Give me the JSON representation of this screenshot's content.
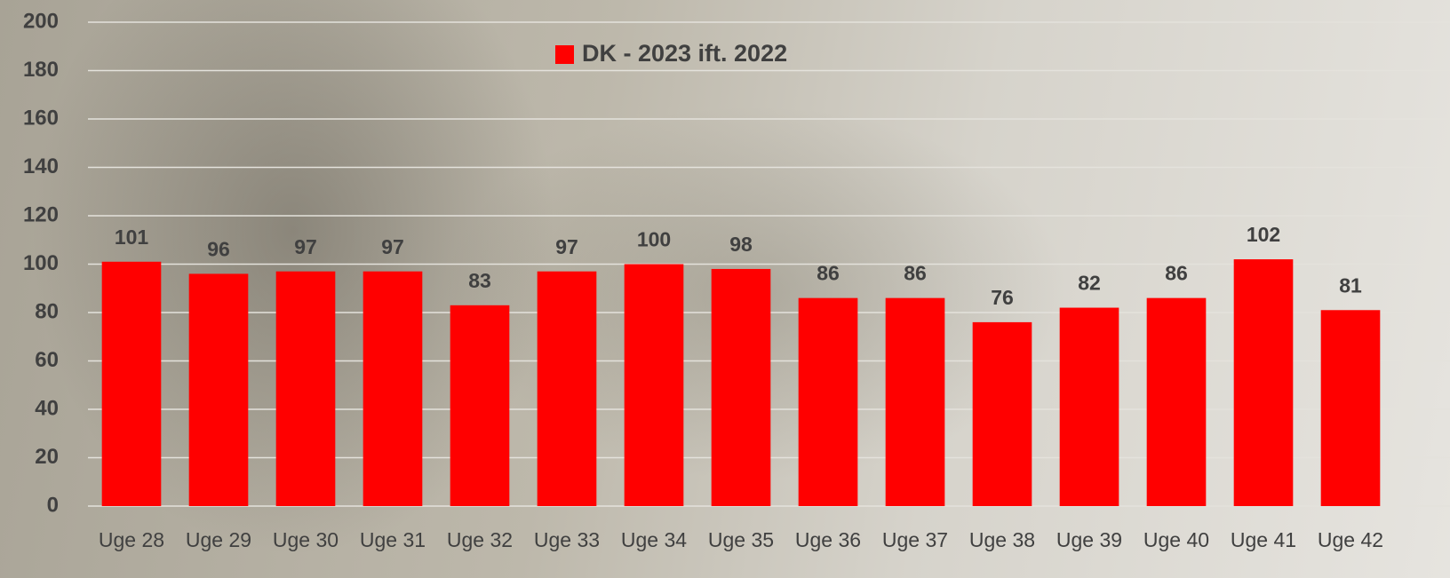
{
  "chart_data": {
    "type": "bar",
    "categories": [
      "Uge 28",
      "Uge 29",
      "Uge 30",
      "Uge 31",
      "Uge 32",
      "Uge 33",
      "Uge 34",
      "Uge 35",
      "Uge 36",
      "Uge 37",
      "Uge 38",
      "Uge 39",
      "Uge 40",
      "Uge 41",
      "Uge 42"
    ],
    "series": [
      {
        "name": "DK - 2023 ift. 2022",
        "color": "#ff0000",
        "values": [
          101,
          96,
          97,
          97,
          83,
          97,
          100,
          98,
          86,
          86,
          76,
          82,
          86,
          102,
          81
        ]
      }
    ],
    "ylim": [
      0,
      200
    ],
    "yticks": [
      0,
      20,
      40,
      60,
      80,
      100,
      120,
      140,
      160,
      180,
      200
    ],
    "grid": true
  }
}
